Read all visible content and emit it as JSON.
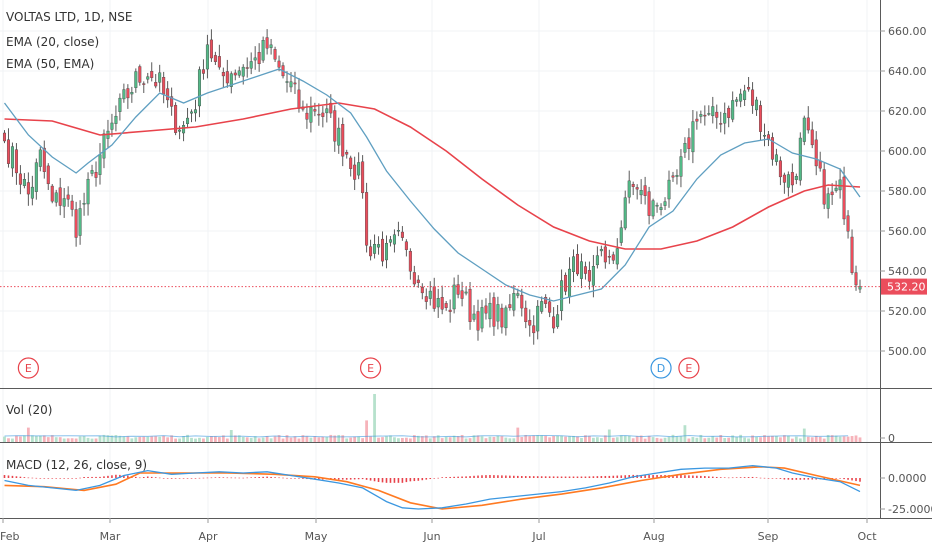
{
  "chart_data": [
    {
      "type": "candlestick",
      "title": "VOLTAS LTD, 1D, NSE",
      "indicators": [
        "EMA (20, close)",
        "EMA (50, EMA)"
      ],
      "x_labels": [
        "Feb",
        "Mar",
        "Apr",
        "May",
        "Jun",
        "Jul",
        "Aug",
        "Sep",
        "Oct"
      ],
      "ylim": [
        480,
        670
      ],
      "y_ticks": [
        "660.00",
        "640.00",
        "620.00",
        "600.00",
        "580.00",
        "560.00",
        "540.00",
        "520.00",
        "500.00"
      ],
      "last_price": 532.2,
      "last_price_label": "532.20",
      "grid": true,
      "colors": {
        "up": "#53b987",
        "down": "#eb4d5c",
        "ema20": "#5f9fc1",
        "ema50": "#e8434b"
      },
      "close_path": [
        {
          "x": 0,
          "y": 605
        },
        {
          "x": 3,
          "y": 592
        },
        {
          "x": 6,
          "y": 578
        },
        {
          "x": 9,
          "y": 597
        },
        {
          "x": 12,
          "y": 573
        },
        {
          "x": 15,
          "y": 578
        },
        {
          "x": 18,
          "y": 563
        },
        {
          "x": 21,
          "y": 580
        },
        {
          "x": 24,
          "y": 598
        },
        {
          "x": 27,
          "y": 612
        },
        {
          "x": 30,
          "y": 625
        },
        {
          "x": 33,
          "y": 635
        },
        {
          "x": 36,
          "y": 640
        },
        {
          "x": 39,
          "y": 633
        },
        {
          "x": 42,
          "y": 617
        },
        {
          "x": 45,
          "y": 612
        },
        {
          "x": 48,
          "y": 625
        },
        {
          "x": 51,
          "y": 655
        },
        {
          "x": 54,
          "y": 636
        },
        {
          "x": 57,
          "y": 640
        },
        {
          "x": 60,
          "y": 643
        },
        {
          "x": 63,
          "y": 645
        },
        {
          "x": 66,
          "y": 652
        },
        {
          "x": 69,
          "y": 640
        },
        {
          "x": 72,
          "y": 632
        },
        {
          "x": 75,
          "y": 618
        },
        {
          "x": 78,
          "y": 622
        },
        {
          "x": 81,
          "y": 617
        },
        {
          "x": 84,
          "y": 607
        },
        {
          "x": 87,
          "y": 596
        },
        {
          "x": 90,
          "y": 583
        },
        {
          "x": 91,
          "y": 551
        },
        {
          "x": 93,
          "y": 554
        },
        {
          "x": 96,
          "y": 548
        },
        {
          "x": 99,
          "y": 555
        },
        {
          "x": 102,
          "y": 543
        },
        {
          "x": 105,
          "y": 535
        },
        {
          "x": 108,
          "y": 525
        },
        {
          "x": 111,
          "y": 519
        },
        {
          "x": 114,
          "y": 532
        },
        {
          "x": 117,
          "y": 520
        },
        {
          "x": 120,
          "y": 516
        },
        {
          "x": 123,
          "y": 519
        },
        {
          "x": 126,
          "y": 515
        },
        {
          "x": 129,
          "y": 532
        },
        {
          "x": 132,
          "y": 512
        },
        {
          "x": 135,
          "y": 522
        },
        {
          "x": 138,
          "y": 518
        },
        {
          "x": 141,
          "y": 535
        },
        {
          "x": 144,
          "y": 545
        },
        {
          "x": 147,
          "y": 528
        },
        {
          "x": 150,
          "y": 552
        },
        {
          "x": 153,
          "y": 540
        },
        {
          "x": 156,
          "y": 578
        },
        {
          "x": 159,
          "y": 583
        },
        {
          "x": 162,
          "y": 570
        },
        {
          "x": 165,
          "y": 576
        },
        {
          "x": 168,
          "y": 580
        },
        {
          "x": 171,
          "y": 598
        },
        {
          "x": 174,
          "y": 620
        },
        {
          "x": 177,
          "y": 615
        },
        {
          "x": 180,
          "y": 618
        },
        {
          "x": 183,
          "y": 623
        },
        {
          "x": 186,
          "y": 630
        },
        {
          "x": 189,
          "y": 622
        },
        {
          "x": 192,
          "y": 605
        },
        {
          "x": 195,
          "y": 590
        },
        {
          "x": 198,
          "y": 584
        },
        {
          "x": 201,
          "y": 612
        },
        {
          "x": 204,
          "y": 590
        },
        {
          "x": 207,
          "y": 575
        },
        {
          "x": 210,
          "y": 580
        },
        {
          "x": 212,
          "y": 565
        },
        {
          "x": 213,
          "y": 545
        },
        {
          "x": 215,
          "y": 532
        }
      ],
      "ema20_path": [
        {
          "x": 0,
          "y": 624
        },
        {
          "x": 6,
          "y": 608
        },
        {
          "x": 12,
          "y": 597
        },
        {
          "x": 18,
          "y": 589
        },
        {
          "x": 21,
          "y": 594
        },
        {
          "x": 27,
          "y": 603
        },
        {
          "x": 33,
          "y": 617
        },
        {
          "x": 39,
          "y": 629
        },
        {
          "x": 45,
          "y": 624
        },
        {
          "x": 51,
          "y": 629
        },
        {
          "x": 57,
          "y": 633
        },
        {
          "x": 63,
          "y": 637
        },
        {
          "x": 69,
          "y": 641
        },
        {
          "x": 75,
          "y": 635
        },
        {
          "x": 81,
          "y": 628
        },
        {
          "x": 87,
          "y": 619
        },
        {
          "x": 91,
          "y": 607
        },
        {
          "x": 96,
          "y": 590
        },
        {
          "x": 102,
          "y": 575
        },
        {
          "x": 108,
          "y": 561
        },
        {
          "x": 114,
          "y": 549
        },
        {
          "x": 120,
          "y": 541
        },
        {
          "x": 126,
          "y": 533
        },
        {
          "x": 132,
          "y": 528
        },
        {
          "x": 138,
          "y": 525
        },
        {
          "x": 144,
          "y": 528
        },
        {
          "x": 150,
          "y": 531
        },
        {
          "x": 156,
          "y": 543
        },
        {
          "x": 162,
          "y": 562
        },
        {
          "x": 168,
          "y": 570
        },
        {
          "x": 174,
          "y": 586
        },
        {
          "x": 180,
          "y": 598
        },
        {
          "x": 186,
          "y": 604
        },
        {
          "x": 192,
          "y": 606
        },
        {
          "x": 198,
          "y": 599
        },
        {
          "x": 204,
          "y": 596
        },
        {
          "x": 210,
          "y": 591
        },
        {
          "x": 215,
          "y": 577
        }
      ],
      "ema50_path": [
        {
          "x": 0,
          "y": 616
        },
        {
          "x": 12,
          "y": 615
        },
        {
          "x": 24,
          "y": 608
        },
        {
          "x": 36,
          "y": 610
        },
        {
          "x": 48,
          "y": 612
        },
        {
          "x": 60,
          "y": 616
        },
        {
          "x": 72,
          "y": 621
        },
        {
          "x": 84,
          "y": 624
        },
        {
          "x": 93,
          "y": 621
        },
        {
          "x": 102,
          "y": 612
        },
        {
          "x": 111,
          "y": 600
        },
        {
          "x": 120,
          "y": 586
        },
        {
          "x": 129,
          "y": 573
        },
        {
          "x": 138,
          "y": 562
        },
        {
          "x": 147,
          "y": 555
        },
        {
          "x": 156,
          "y": 551
        },
        {
          "x": 165,
          "y": 551
        },
        {
          "x": 174,
          "y": 555
        },
        {
          "x": 183,
          "y": 562
        },
        {
          "x": 192,
          "y": 572
        },
        {
          "x": 201,
          "y": 580
        },
        {
          "x": 207,
          "y": 583
        },
        {
          "x": 215,
          "y": 582
        }
      ],
      "events": [
        {
          "label": "E",
          "x": 6,
          "kind": "earnings"
        },
        {
          "label": "E",
          "x": 92,
          "kind": "earnings"
        },
        {
          "label": "D",
          "x": 165,
          "kind": "dividend"
        },
        {
          "label": "E",
          "x": 172,
          "kind": "earnings"
        }
      ]
    },
    {
      "type": "bar",
      "title": "Vol (20)",
      "ylim": [
        0,
        1
      ],
      "y_ticks": [
        "0"
      ],
      "volume_spikes": [
        {
          "x": 93,
          "v": 1.0
        },
        {
          "x": 91,
          "v": 0.45
        },
        {
          "x": 6,
          "v": 0.3
        },
        {
          "x": 129,
          "v": 0.3
        },
        {
          "x": 171,
          "v": 0.35
        },
        {
          "x": 201,
          "v": 0.28
        },
        {
          "x": 57,
          "v": 0.25
        },
        {
          "x": 152,
          "v": 0.26
        }
      ]
    },
    {
      "type": "line",
      "title": "MACD (12, 26, close, 9)",
      "ylim": [
        -26,
        10
      ],
      "y_ticks": [
        "0.0000",
        "-25.0000"
      ],
      "y_tick_values": [
        0,
        -25
      ],
      "colors": {
        "macd": "#3b97e0",
        "signal": "#ff7a22",
        "hist": "#e8434b"
      },
      "macd_path": [
        {
          "x": 0,
          "y": -2
        },
        {
          "x": 6,
          "y": -6
        },
        {
          "x": 12,
          "y": -8
        },
        {
          "x": 18,
          "y": -10
        },
        {
          "x": 24,
          "y": -6
        },
        {
          "x": 30,
          "y": 2
        },
        {
          "x": 36,
          "y": 6
        },
        {
          "x": 42,
          "y": 3
        },
        {
          "x": 48,
          "y": 4
        },
        {
          "x": 54,
          "y": 5
        },
        {
          "x": 60,
          "y": 4
        },
        {
          "x": 66,
          "y": 5
        },
        {
          "x": 72,
          "y": 2
        },
        {
          "x": 78,
          "y": -1
        },
        {
          "x": 84,
          "y": -4
        },
        {
          "x": 90,
          "y": -8
        },
        {
          "x": 96,
          "y": -19
        },
        {
          "x": 100,
          "y": -24
        },
        {
          "x": 104,
          "y": -25
        },
        {
          "x": 110,
          "y": -24
        },
        {
          "x": 116,
          "y": -21
        },
        {
          "x": 122,
          "y": -17
        },
        {
          "x": 128,
          "y": -15
        },
        {
          "x": 134,
          "y": -13
        },
        {
          "x": 140,
          "y": -11
        },
        {
          "x": 146,
          "y": -8
        },
        {
          "x": 152,
          "y": -4
        },
        {
          "x": 158,
          "y": 1
        },
        {
          "x": 164,
          "y": 4
        },
        {
          "x": 170,
          "y": 7
        },
        {
          "x": 176,
          "y": 8
        },
        {
          "x": 182,
          "y": 8
        },
        {
          "x": 188,
          "y": 10
        },
        {
          "x": 194,
          "y": 8
        },
        {
          "x": 198,
          "y": 4
        },
        {
          "x": 204,
          "y": 0
        },
        {
          "x": 210,
          "y": -3
        },
        {
          "x": 215,
          "y": -11
        }
      ],
      "signal_path": [
        {
          "x": 0,
          "y": -6
        },
        {
          "x": 10,
          "y": -7
        },
        {
          "x": 20,
          "y": -10
        },
        {
          "x": 28,
          "y": -5
        },
        {
          "x": 34,
          "y": 4
        },
        {
          "x": 44,
          "y": 4
        },
        {
          "x": 56,
          "y": 4
        },
        {
          "x": 68,
          "y": 3
        },
        {
          "x": 78,
          "y": 1
        },
        {
          "x": 86,
          "y": -3
        },
        {
          "x": 94,
          "y": -10
        },
        {
          "x": 102,
          "y": -20
        },
        {
          "x": 110,
          "y": -25
        },
        {
          "x": 120,
          "y": -22
        },
        {
          "x": 130,
          "y": -17
        },
        {
          "x": 140,
          "y": -13
        },
        {
          "x": 150,
          "y": -8
        },
        {
          "x": 160,
          "y": -2
        },
        {
          "x": 170,
          "y": 3
        },
        {
          "x": 180,
          "y": 7
        },
        {
          "x": 190,
          "y": 9
        },
        {
          "x": 196,
          "y": 8
        },
        {
          "x": 204,
          "y": 2
        },
        {
          "x": 215,
          "y": -6
        }
      ]
    }
  ]
}
